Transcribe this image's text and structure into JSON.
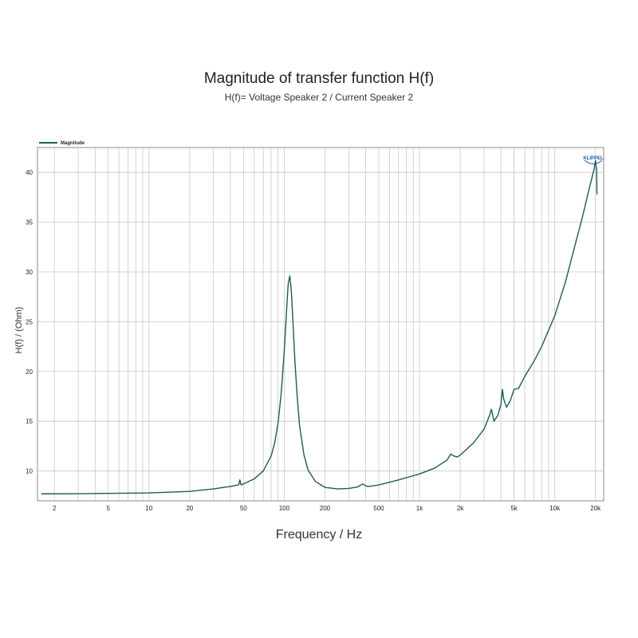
{
  "chart_data": {
    "type": "line",
    "title": "Magnitude of transfer function H(f)",
    "subtitle": "H(f)= Voltage Speaker 2 / Current Speaker 2",
    "xlabel": "Frequency / Hz",
    "ylabel": "H(f) / (Ohm)",
    "x_scale": "log",
    "xlim": [
      1.5,
      23000
    ],
    "ylim": [
      7.0,
      42.5
    ],
    "x_ticks": [
      2,
      5,
      10,
      20,
      50,
      100,
      200,
      500,
      1000,
      2000,
      5000,
      10000,
      20000
    ],
    "x_tick_labels": [
      "2",
      "5",
      "10",
      "20",
      "50",
      "100",
      "200",
      "500",
      "1k",
      "2k",
      "5k",
      "10k",
      "20k"
    ],
    "y_ticks": [
      10,
      15,
      20,
      25,
      30,
      35,
      40
    ],
    "y_tick_labels": [
      "10",
      "15",
      "20",
      "25",
      "30",
      "35",
      "40"
    ],
    "grid": true,
    "legend_position": "top-left",
    "logo_text": "KLIPPEL",
    "series": [
      {
        "name": "Magnitude",
        "color": "#1f5a5a",
        "x": [
          1.6,
          3,
          5,
          10,
          20,
          30,
          40,
          46,
          47,
          48,
          50,
          60,
          70,
          80,
          85,
          90,
          95,
          100,
          104,
          107,
          110,
          113,
          116,
          120,
          125,
          130,
          140,
          150,
          170,
          200,
          250,
          300,
          350,
          380,
          400,
          420,
          450,
          500,
          700,
          1000,
          1300,
          1600,
          1700,
          1800,
          1900,
          2000,
          2500,
          3000,
          3300,
          3400,
          3550,
          3800,
          4000,
          4100,
          4200,
          4400,
          4700,
          5000,
          5400,
          6000,
          7000,
          8000,
          10000,
          12000,
          14000,
          16000,
          18000,
          19500,
          20000,
          20400,
          20500
        ],
        "y": [
          7.7,
          7.72,
          7.75,
          7.8,
          7.95,
          8.2,
          8.45,
          8.6,
          9.1,
          8.6,
          8.7,
          9.2,
          10.0,
          11.5,
          12.8,
          14.8,
          17.8,
          22.0,
          26.0,
          28.8,
          29.6,
          28.0,
          25.0,
          21.0,
          17.3,
          14.5,
          11.6,
          10.1,
          8.95,
          8.35,
          8.2,
          8.25,
          8.4,
          8.7,
          8.5,
          8.45,
          8.5,
          8.6,
          9.1,
          9.7,
          10.3,
          11.1,
          11.7,
          11.5,
          11.4,
          11.6,
          12.8,
          14.2,
          15.6,
          16.2,
          15.0,
          15.6,
          16.7,
          18.2,
          17.2,
          16.4,
          17.1,
          18.2,
          18.3,
          19.5,
          21.0,
          22.5,
          25.6,
          29.0,
          32.5,
          35.5,
          38.4,
          40.3,
          41.2,
          40.2,
          37.8
        ]
      }
    ]
  }
}
